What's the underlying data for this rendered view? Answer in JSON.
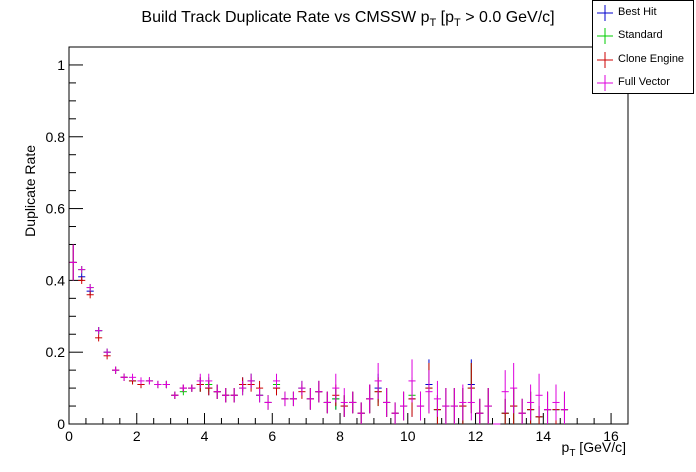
{
  "chart_data": {
    "type": "scatter",
    "title_main": "Build Track Duplicate Rate vs CMSSW p",
    "title_sub1": "T",
    "title_mid": " [p",
    "title_sub2": "T",
    "title_end": " > 0.0 GeV/c]",
    "xlabel_main": "p",
    "xlabel_sub": "T",
    "xlabel_unit": " [GeV/c]",
    "ylabel": "Duplicate Rate",
    "xlim": [
      0,
      16.5
    ],
    "ylim": [
      0,
      1.05
    ],
    "xticks": [
      0,
      2,
      4,
      6,
      8,
      10,
      12,
      14,
      16
    ],
    "yticks": [
      0,
      0.2,
      0.4,
      0.6,
      0.8,
      1
    ],
    "ytick_labels": [
      "0",
      "0.2",
      "0.4",
      "0.6",
      "0.8",
      "1"
    ],
    "bin_width": 0.25,
    "legend_position": "top-right",
    "series": [
      {
        "name": "Best Hit",
        "color": "#0000cc",
        "values": [
          0.45,
          0.41,
          0.37,
          0.26,
          0.2,
          0.15,
          0.13,
          0.12,
          0.11,
          0.12,
          0.11,
          0.11,
          0.08,
          0.1,
          0.1,
          0.11,
          0.1,
          0.09,
          0.08,
          0.08,
          0.11,
          0.12,
          0.08,
          0.06,
          0.1,
          0.07,
          0.07,
          0.1,
          0.07,
          0.09,
          0.06,
          0.07,
          0.05,
          0.06,
          0.03,
          0.07,
          0.1,
          0.06,
          0.03,
          0.05,
          0.07,
          0.05,
          0.11,
          0.04,
          0.05,
          0.05,
          0.05,
          0.11,
          0.03,
          0.05,
          0.0,
          0.03,
          0.05,
          0.03,
          0.04,
          0.02,
          0.04,
          0.04,
          0.04
        ],
        "errors": [
          0.05,
          0.01,
          0.01,
          0.01,
          0.01,
          0.01,
          0.01,
          0.01,
          0.01,
          0.01,
          0.01,
          0.01,
          0.01,
          0.01,
          0.01,
          0.02,
          0.02,
          0.02,
          0.02,
          0.02,
          0.02,
          0.02,
          0.02,
          0.02,
          0.02,
          0.02,
          0.02,
          0.02,
          0.03,
          0.03,
          0.03,
          0.03,
          0.03,
          0.03,
          0.03,
          0.04,
          0.04,
          0.04,
          0.03,
          0.04,
          0.05,
          0.04,
          0.07,
          0.04,
          0.05,
          0.05,
          0.05,
          0.07,
          0.04,
          0.05,
          0.0,
          0.04,
          0.05,
          0.04,
          0.05,
          0.03,
          0.05,
          0.05,
          0.05
        ]
      },
      {
        "name": "Standard",
        "color": "#00cc00",
        "values": [
          0.45,
          0.43,
          0.38,
          0.26,
          0.2,
          0.15,
          0.13,
          0.12,
          0.11,
          0.12,
          0.11,
          0.11,
          0.08,
          0.09,
          0.1,
          0.11,
          0.11,
          0.09,
          0.08,
          0.08,
          0.1,
          0.12,
          0.08,
          0.06,
          0.11,
          0.07,
          0.07,
          0.1,
          0.07,
          0.09,
          0.06,
          0.07,
          0.05,
          0.06,
          0.03,
          0.07,
          0.09,
          0.06,
          0.03,
          0.05,
          0.08,
          0.05,
          0.1,
          0.04,
          0.05,
          0.05,
          0.05,
          0.1,
          0.03,
          0.05,
          0.0,
          0.03,
          0.05,
          0.03,
          0.04,
          0.02,
          0.04,
          0.04,
          0.04
        ],
        "errors": [
          0.05,
          0.01,
          0.01,
          0.01,
          0.01,
          0.01,
          0.01,
          0.01,
          0.01,
          0.01,
          0.01,
          0.01,
          0.01,
          0.01,
          0.01,
          0.02,
          0.02,
          0.02,
          0.02,
          0.02,
          0.02,
          0.02,
          0.02,
          0.02,
          0.02,
          0.02,
          0.02,
          0.02,
          0.03,
          0.03,
          0.03,
          0.03,
          0.03,
          0.03,
          0.03,
          0.04,
          0.04,
          0.04,
          0.03,
          0.04,
          0.05,
          0.04,
          0.07,
          0.04,
          0.05,
          0.05,
          0.05,
          0.07,
          0.04,
          0.05,
          0.0,
          0.04,
          0.05,
          0.04,
          0.05,
          0.03,
          0.05,
          0.05,
          0.05
        ]
      },
      {
        "name": "Clone Engine",
        "color": "#cc0000",
        "values": [
          0.45,
          0.4,
          0.36,
          0.24,
          0.19,
          0.15,
          0.13,
          0.12,
          0.11,
          0.12,
          0.11,
          0.11,
          0.08,
          0.1,
          0.1,
          0.11,
          0.1,
          0.09,
          0.08,
          0.08,
          0.11,
          0.11,
          0.1,
          0.06,
          0.1,
          0.07,
          0.07,
          0.09,
          0.07,
          0.09,
          0.06,
          0.08,
          0.05,
          0.06,
          0.03,
          0.07,
          0.09,
          0.06,
          0.03,
          0.05,
          0.07,
          0.05,
          0.1,
          0.04,
          0.05,
          0.05,
          0.05,
          0.1,
          0.03,
          0.05,
          0.0,
          0.03,
          0.05,
          0.03,
          0.04,
          0.02,
          0.04,
          0.04,
          0.04
        ],
        "errors": [
          0.05,
          0.01,
          0.01,
          0.01,
          0.01,
          0.01,
          0.01,
          0.01,
          0.01,
          0.01,
          0.01,
          0.01,
          0.01,
          0.01,
          0.01,
          0.02,
          0.02,
          0.02,
          0.02,
          0.02,
          0.02,
          0.02,
          0.02,
          0.02,
          0.02,
          0.02,
          0.02,
          0.02,
          0.03,
          0.03,
          0.03,
          0.03,
          0.03,
          0.03,
          0.03,
          0.04,
          0.04,
          0.04,
          0.03,
          0.04,
          0.05,
          0.04,
          0.07,
          0.04,
          0.05,
          0.05,
          0.05,
          0.07,
          0.04,
          0.05,
          0.0,
          0.04,
          0.05,
          0.04,
          0.05,
          0.03,
          0.05,
          0.05,
          0.05
        ]
      },
      {
        "name": "Full Vector",
        "color": "#dd00dd",
        "values": [
          0.45,
          0.43,
          0.38,
          0.26,
          0.2,
          0.15,
          0.13,
          0.13,
          0.12,
          0.12,
          0.11,
          0.11,
          0.08,
          0.1,
          0.1,
          0.12,
          0.12,
          0.09,
          0.08,
          0.08,
          0.1,
          0.12,
          0.08,
          0.06,
          0.12,
          0.07,
          0.07,
          0.1,
          0.07,
          0.09,
          0.06,
          0.1,
          0.06,
          0.06,
          0.03,
          0.07,
          0.12,
          0.06,
          0.03,
          0.05,
          0.12,
          0.05,
          0.09,
          0.07,
          0.05,
          0.05,
          0.06,
          0.06,
          0.03,
          0.05,
          0.0,
          0.09,
          0.1,
          0.03,
          0.06,
          0.08,
          0.04,
          0.06,
          0.04
        ],
        "errors": [
          0.05,
          0.01,
          0.01,
          0.01,
          0.01,
          0.01,
          0.01,
          0.01,
          0.01,
          0.01,
          0.01,
          0.01,
          0.01,
          0.01,
          0.01,
          0.02,
          0.02,
          0.02,
          0.02,
          0.02,
          0.02,
          0.02,
          0.02,
          0.02,
          0.02,
          0.02,
          0.02,
          0.02,
          0.03,
          0.03,
          0.03,
          0.04,
          0.04,
          0.03,
          0.03,
          0.04,
          0.05,
          0.04,
          0.03,
          0.04,
          0.06,
          0.04,
          0.06,
          0.05,
          0.05,
          0.05,
          0.05,
          0.05,
          0.04,
          0.05,
          0.0,
          0.06,
          0.07,
          0.04,
          0.05,
          0.06,
          0.05,
          0.05,
          0.05
        ]
      }
    ]
  }
}
